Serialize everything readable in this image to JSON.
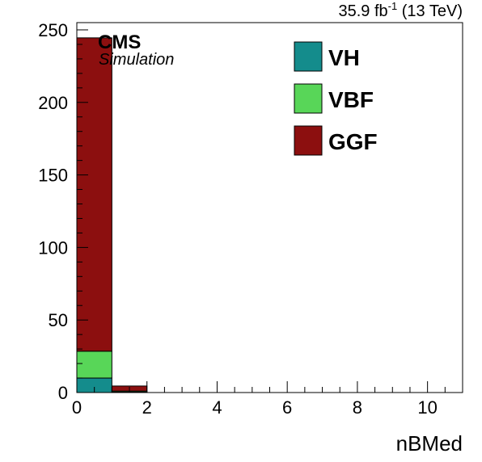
{
  "header": {
    "lumi": "35.9 fb",
    "lumi_sup": "-1",
    "energy": " (13 TeV)"
  },
  "labels": {
    "cms": "CMS",
    "simulation": "Simulation"
  },
  "colors": {
    "VH": "#148c8c",
    "VBF": "#58d658",
    "GGF": "#8c0f0f"
  },
  "chart_data": {
    "type": "bar",
    "stacked": true,
    "xlabel": "nBMed",
    "ylabel": "",
    "xlim": [
      0,
      11
    ],
    "ylim": [
      0,
      255
    ],
    "bin_width": 1,
    "bins": [
      0,
      1
    ],
    "x_ticks": [
      "0",
      "2",
      "4",
      "6",
      "8",
      "10"
    ],
    "y_ticks": [
      "0",
      "50",
      "100",
      "150",
      "200",
      "250"
    ],
    "legend_position": "top-right",
    "series": [
      {
        "name": "VH",
        "values": [
          10,
          0.3
        ]
      },
      {
        "name": "VBF",
        "values": [
          18.5,
          0.7
        ]
      },
      {
        "name": "GGF",
        "values": [
          216,
          3.5
        ]
      }
    ]
  }
}
